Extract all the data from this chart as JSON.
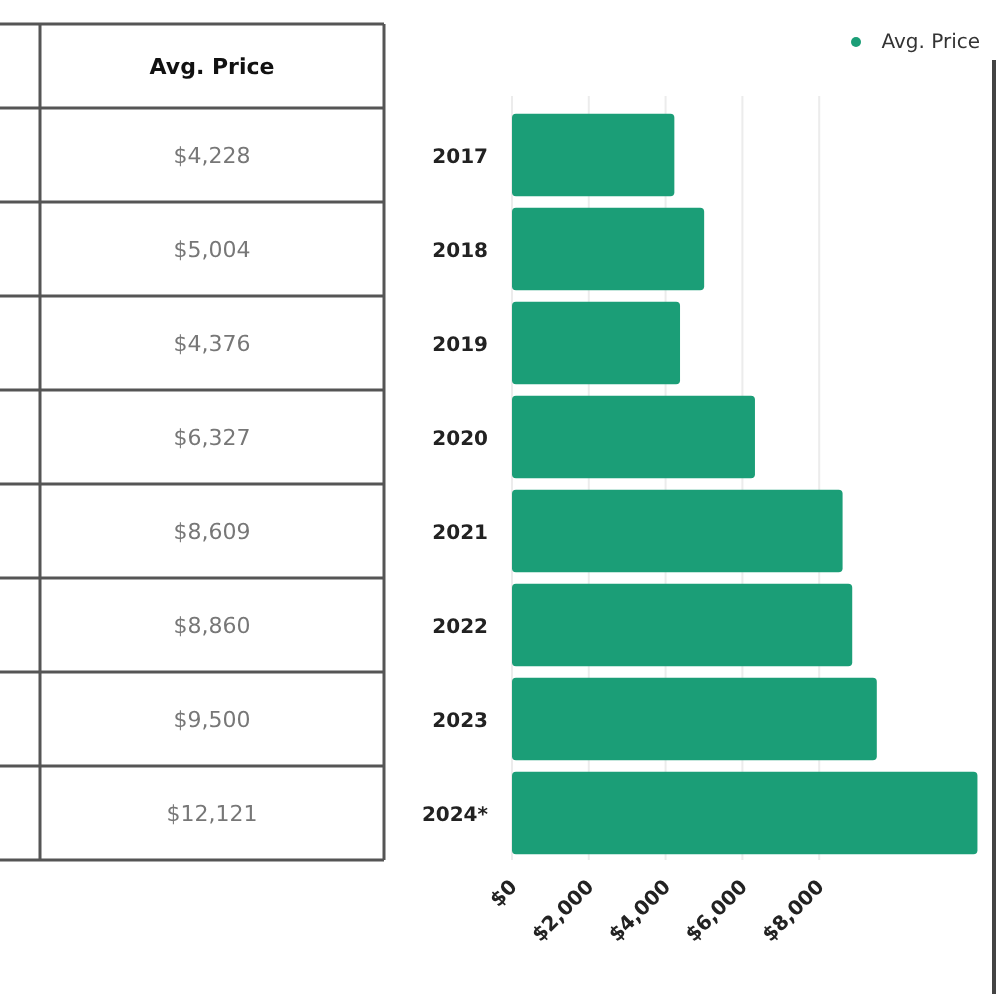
{
  "chart_data": {
    "type": "bar",
    "orientation": "horizontal",
    "categories": [
      "2017",
      "2018",
      "2019",
      "2020",
      "2021",
      "2022",
      "2023",
      "2024*"
    ],
    "series": [
      {
        "name": "Avg. Price",
        "color": "#1b9e77",
        "values": [
          4228,
          5004,
          4376,
          6327,
          8609,
          8860,
          9500,
          12121
        ],
        "value_labels": [
          "$4,228",
          "$5,004",
          "$4,376",
          "$6,327",
          "$8,609",
          "$8,860",
          "$9,500",
          "$12,121"
        ]
      }
    ],
    "xlim": [
      0,
      12500
    ],
    "xticks": [
      {
        "value": 0,
        "label": "$0"
      },
      {
        "value": 2000,
        "label": "$2,000"
      },
      {
        "value": 4000,
        "label": "$4,000"
      },
      {
        "value": 6000,
        "label": "$6,000"
      },
      {
        "value": 8000,
        "label": "$8,000"
      }
    ],
    "grid": "x",
    "legend": "top right"
  }
}
